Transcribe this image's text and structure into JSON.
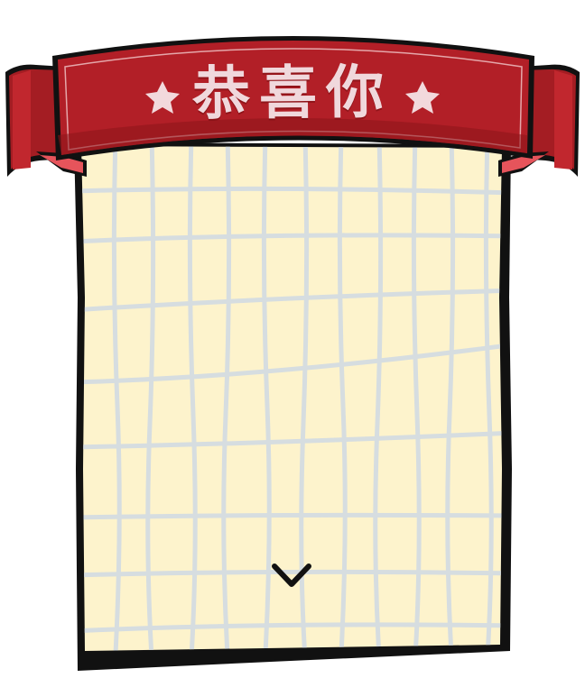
{
  "banner": {
    "title": "恭喜你",
    "left_star_icon": "star-icon",
    "right_star_icon": "star-icon"
  },
  "card": {
    "expand_icon": "chevron-down-icon"
  },
  "colors": {
    "banner_red": "#b21f27",
    "banner_dark": "#8c1419",
    "ribbon_tail": "#a41d23",
    "ribbon_tail_underside": "#e6545b",
    "outline": "#111111",
    "paper": "#fdf3cc",
    "grid_line": "#d6dde0",
    "star": "#f2d9dc",
    "title_text": "#f0d8dc"
  }
}
